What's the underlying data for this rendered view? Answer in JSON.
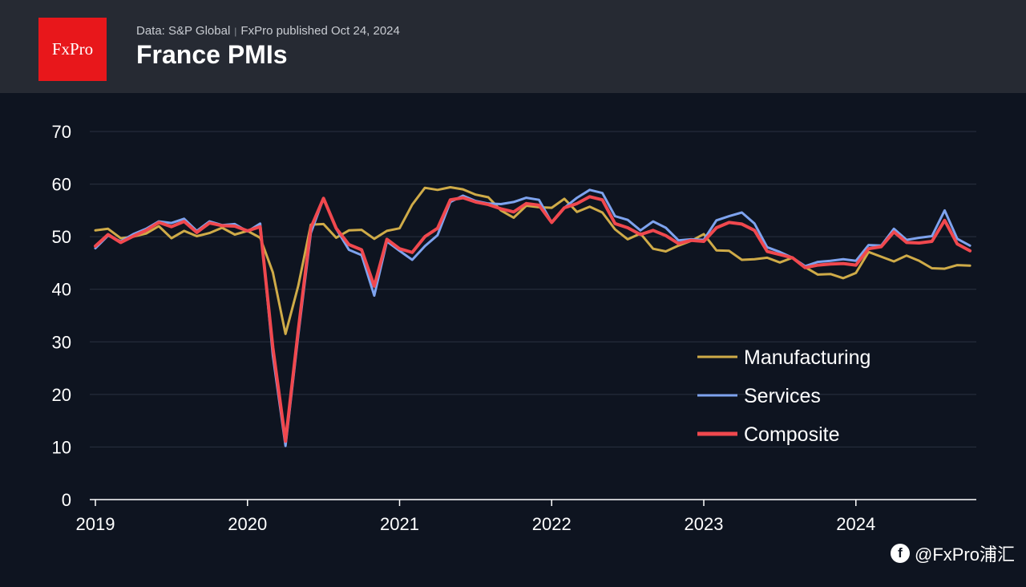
{
  "header": {
    "logo_text": "FxPro",
    "source_text": "Data: S&P Global",
    "published_text": "FxPro published Oct 24, 2024",
    "title": "France PMIs"
  },
  "watermark": {
    "icon": "app-logo-icon",
    "text": "@FxPro浦汇"
  },
  "colors": {
    "background": "#0e1420",
    "header": "#262a33",
    "logo": "#e8171b",
    "manufacturing": "#cfab48",
    "services": "#7ea3ee",
    "composite": "#f0484e",
    "grid": "#2a3140"
  },
  "chart_data": {
    "type": "line",
    "title": "France PMIs",
    "xlabel": "",
    "ylabel": "",
    "ylim": [
      0,
      70
    ],
    "yticks": [
      0,
      10,
      20,
      30,
      40,
      50,
      60,
      70
    ],
    "xticks": [
      {
        "value": 2019,
        "label": "2019"
      },
      {
        "value": 2020,
        "label": "2020"
      },
      {
        "value": 2021,
        "label": "2021"
      },
      {
        "value": 2022,
        "label": "2022"
      },
      {
        "value": 2023,
        "label": "2023"
      },
      {
        "value": 2024,
        "label": "2024"
      }
    ],
    "x_start": 2019.0,
    "x_step": 0.0833333,
    "legend_position": "center-right",
    "series": [
      {
        "name": "Manufacturing",
        "color": "#cfab48",
        "values": [
          51.2,
          51.5,
          49.7,
          50.0,
          50.6,
          52.0,
          49.7,
          51.1,
          50.1,
          50.7,
          51.7,
          50.4,
          51.1,
          49.8,
          43.2,
          31.5,
          40.6,
          52.3,
          52.4,
          49.8,
          51.2,
          51.3,
          49.6,
          51.1,
          51.6,
          56.1,
          59.3,
          58.9,
          59.4,
          59.0,
          58.0,
          57.5,
          55.0,
          53.6,
          55.9,
          55.6,
          55.5,
          57.2,
          54.7,
          55.7,
          54.6,
          51.4,
          49.5,
          50.6,
          47.7,
          47.2,
          48.3,
          49.2,
          50.5,
          47.4,
          47.3,
          45.6,
          45.7,
          46.0,
          45.1,
          46.0,
          44.2,
          42.8,
          42.9,
          42.1,
          43.1,
          47.1,
          46.2,
          45.3,
          46.4,
          45.4,
          44.0,
          43.9,
          44.6,
          44.5
        ],
        "value_label_hint": "monthly PMI"
      },
      {
        "name": "Services",
        "color": "#7ea3ee",
        "values": [
          47.8,
          50.2,
          49.1,
          50.5,
          51.5,
          52.9,
          52.6,
          53.4,
          51.1,
          52.9,
          52.2,
          52.4,
          51.0,
          52.5,
          27.4,
          10.2,
          31.1,
          50.7,
          57.3,
          51.5,
          47.5,
          46.5,
          38.8,
          49.1,
          47.3,
          45.6,
          48.2,
          50.3,
          56.6,
          57.8,
          56.8,
          56.3,
          56.2,
          56.6,
          57.4,
          57.0,
          52.7,
          55.5,
          57.4,
          58.9,
          58.3,
          53.9,
          53.2,
          51.2,
          52.9,
          51.7,
          49.3,
          49.5,
          49.4,
          53.1,
          53.9,
          54.6,
          52.5,
          48.0,
          47.1,
          46.0,
          44.4,
          45.2,
          45.4,
          45.7,
          45.4,
          48.4,
          48.3,
          51.5,
          49.4,
          49.8,
          50.1,
          55.0,
          49.6,
          48.3
        ]
      },
      {
        "name": "Composite",
        "color": "#f0484e",
        "values": [
          48.2,
          50.4,
          48.9,
          50.1,
          51.2,
          52.7,
          51.9,
          52.9,
          50.8,
          52.6,
          52.1,
          52.0,
          51.1,
          51.9,
          28.9,
          11.1,
          32.1,
          51.7,
          57.3,
          51.6,
          48.5,
          47.5,
          40.6,
          49.5,
          47.7,
          47.0,
          50.0,
          51.6,
          57.0,
          57.4,
          56.6,
          56.1,
          55.3,
          54.7,
          56.3,
          56.0,
          52.7,
          55.5,
          56.3,
          57.6,
          57.0,
          52.5,
          51.7,
          50.4,
          51.2,
          50.2,
          48.7,
          49.3,
          49.1,
          51.7,
          52.7,
          52.4,
          51.2,
          47.2,
          46.6,
          46.0,
          44.1,
          44.6,
          44.8,
          44.9,
          44.6,
          47.7,
          48.1,
          50.9,
          48.9,
          48.8,
          49.1,
          53.1,
          48.6,
          47.3
        ]
      }
    ]
  }
}
